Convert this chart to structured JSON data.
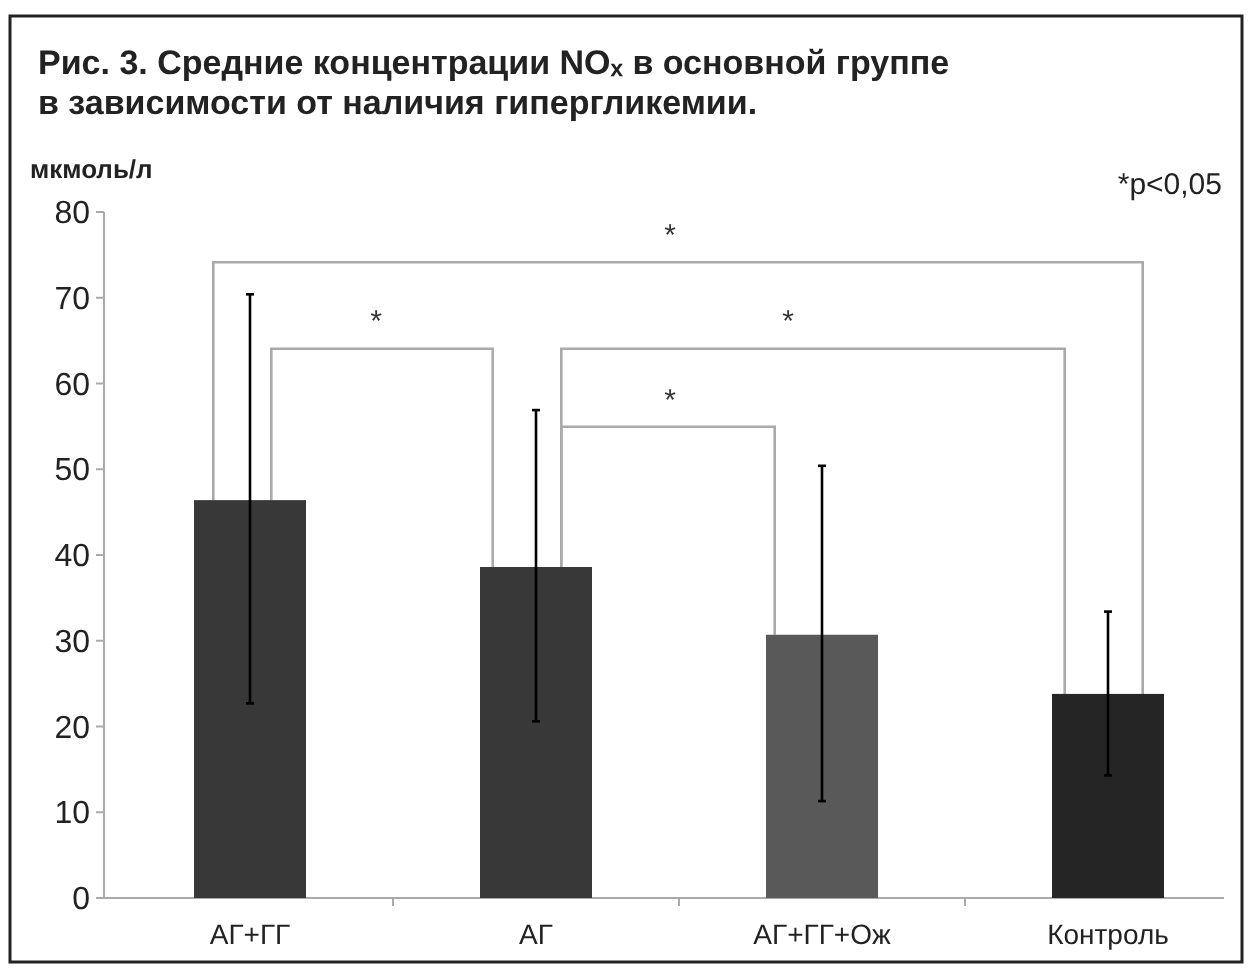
{
  "chart_data": {
    "type": "bar",
    "title": "Рис. 3. Средние концентрации NOₓ в основной группе\nв зависимости от наличия гипергликемии.",
    "ylabel": "мкмоль/л",
    "categories": [
      "АГ+ГГ",
      "АГ",
      "АГ+ГГ+Ож",
      "Контроль"
    ],
    "values": [
      46.4,
      38.6,
      30.7,
      23.8
    ],
    "colors": [
      "#383838",
      "#383838",
      "#595959",
      "#252525"
    ],
    "errors": [
      [
        22.7,
        70.4
      ],
      [
        20.6,
        56.9
      ],
      [
        11.3,
        50.4
      ],
      [
        14.3,
        33.4
      ]
    ],
    "ylim": [
      0,
      80
    ],
    "yticks": [
      0,
      10,
      20,
      30,
      40,
      50,
      60,
      70,
      80
    ],
    "annotations": [
      "*",
      "*",
      "*",
      "*",
      "*p<0,05"
    ]
  }
}
